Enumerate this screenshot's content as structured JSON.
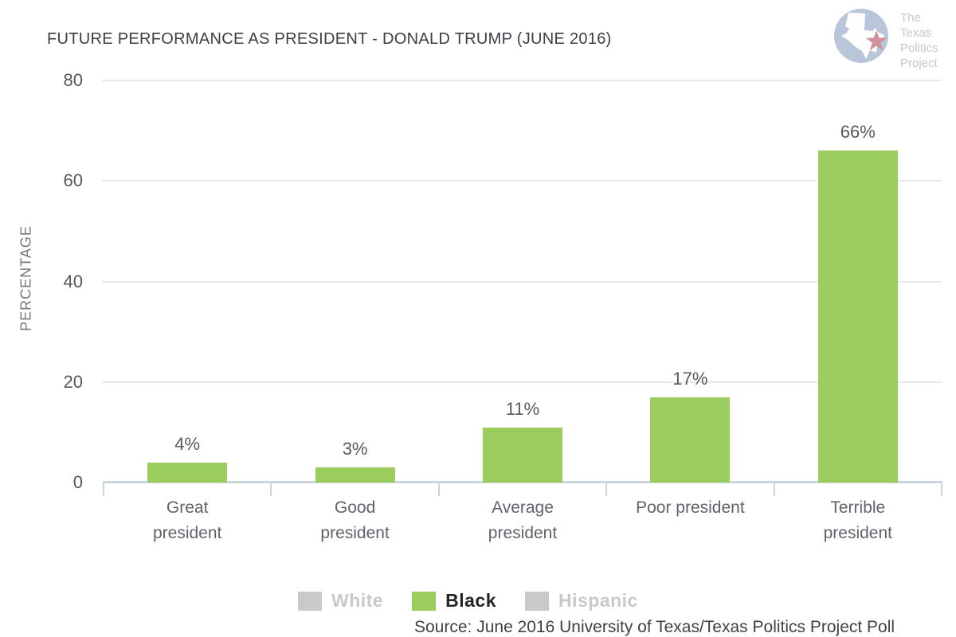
{
  "title": "FUTURE PERFORMANCE AS PRESIDENT - DONALD TRUMP (JUNE 2016)",
  "logo": {
    "lines": [
      "The",
      "Texas",
      "Politics",
      "Project"
    ],
    "circle_color": "#b9c6da",
    "star_color": "#d2919c",
    "text_color": "#c5c7c9"
  },
  "chart_data": {
    "type": "bar",
    "title": "FUTURE PERFORMANCE AS PRESIDENT - DONALD TRUMP (JUNE 2016)",
    "xlabel": "",
    "ylabel": "PERCENTAGE",
    "categories": [
      "Great president",
      "Good president",
      "Average president",
      "Poor president",
      "Terrible president"
    ],
    "category_lines": [
      [
        "Great",
        "president"
      ],
      [
        "Good",
        "president"
      ],
      [
        "Average",
        "president"
      ],
      [
        "Poor president"
      ],
      [
        "Terrible",
        "president"
      ]
    ],
    "series": [
      {
        "name": "Black",
        "values": [
          4,
          3,
          11,
          17,
          66
        ]
      }
    ],
    "value_labels": [
      "4%",
      "3%",
      "11%",
      "17%",
      "66%"
    ],
    "yticks": [
      0,
      20,
      40,
      60,
      80
    ],
    "ylim": [
      0,
      80
    ],
    "grid": true,
    "legend_position": "bottom",
    "colors": {
      "bar": "#9acd5e",
      "grid": "#e9e9e9",
      "axis": "#ccd5dd",
      "ytick_text": "#55585c",
      "value_text": "#55585c",
      "category_text": "#5f6368",
      "ylabel_text": "#75777a"
    }
  },
  "legend": {
    "items": [
      {
        "label": "White",
        "swatch_color": "#c9c9c9",
        "label_color": "#c9c9c9",
        "active": false
      },
      {
        "label": "Black",
        "swatch_color": "#9acd5e",
        "label_color": "#242424",
        "active": true
      },
      {
        "label": "Hispanic",
        "swatch_color": "#c9c9c9",
        "label_color": "#c9c9c9",
        "active": false
      }
    ]
  },
  "source": "Source: June 2016 University of Texas/Texas Politics Project Poll"
}
